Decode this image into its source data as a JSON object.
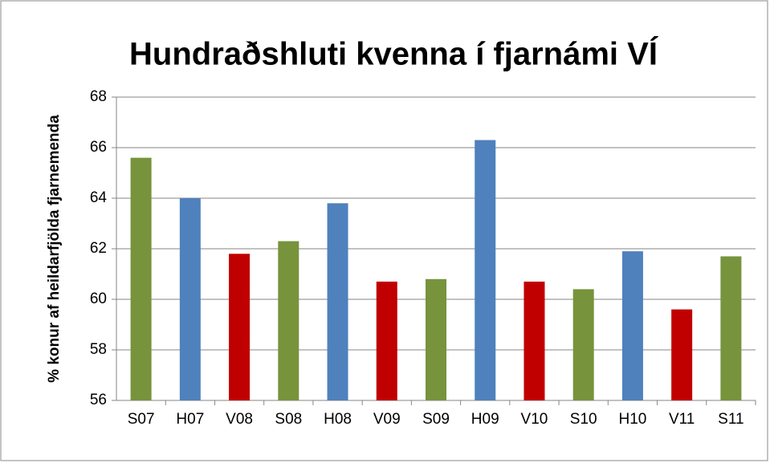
{
  "chart_data": {
    "type": "bar",
    "title": "Hundraðshluti kvenna í fjarnámi VÍ",
    "y_label": "% konur af heildarfjölda fjarnemenda",
    "categories": [
      "S07",
      "H07",
      "V08",
      "S08",
      "H08",
      "V09",
      "S09",
      "H09",
      "V10",
      "S10",
      "H10",
      "V11",
      "S11"
    ],
    "values": [
      65.6,
      64.0,
      61.8,
      62.3,
      63.8,
      60.7,
      60.8,
      66.3,
      60.7,
      60.4,
      61.9,
      59.6,
      61.7
    ],
    "colors": [
      "#77933c",
      "#4f81bd",
      "#c00000",
      "#77933c",
      "#4f81bd",
      "#c00000",
      "#77933c",
      "#4f81bd",
      "#c00000",
      "#77933c",
      "#4f81bd",
      "#c00000",
      "#77933c"
    ],
    "ylim": [
      56,
      68
    ],
    "yticks": [
      56,
      58,
      60,
      62,
      64,
      66,
      68
    ],
    "grid": true
  }
}
